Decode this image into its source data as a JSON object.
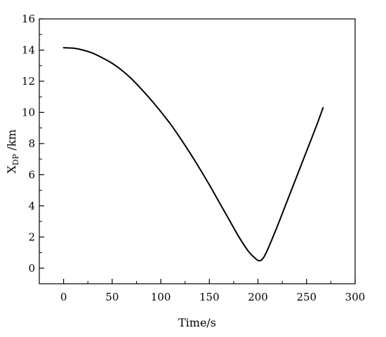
{
  "chart_data": {
    "type": "line",
    "title": "",
    "xlabel": "Time/s",
    "ylabel": {
      "main": "X",
      "sub": "DP",
      "suffix": " /km"
    },
    "xlim": [
      -25,
      300
    ],
    "ylim": [
      -1,
      16
    ],
    "x_ticks": [
      0,
      50,
      100,
      150,
      200,
      250,
      300
    ],
    "y_ticks": [
      0,
      2,
      4,
      6,
      8,
      10,
      12,
      14,
      16
    ],
    "x_tick_labels": [
      "0",
      "50",
      "100",
      "150",
      "200",
      "250",
      "300"
    ],
    "y_tick_labels": [
      "0",
      "2",
      "4",
      "6",
      "8",
      "10",
      "12",
      "14",
      "16"
    ],
    "grid": false,
    "series": [
      {
        "x": [
          0,
          10,
          20,
          30,
          40,
          50,
          60,
          70,
          80,
          90,
          100,
          110,
          120,
          130,
          140,
          150,
          160,
          170,
          180,
          190,
          196,
          200,
          203,
          206,
          210,
          220,
          230,
          240,
          250,
          260,
          267
        ],
        "y": [
          14.15,
          14.12,
          14.0,
          13.8,
          13.5,
          13.15,
          12.7,
          12.15,
          11.5,
          10.8,
          10.05,
          9.25,
          8.35,
          7.4,
          6.4,
          5.35,
          4.25,
          3.15,
          2.05,
          1.1,
          0.7,
          0.5,
          0.5,
          0.7,
          1.2,
          2.7,
          4.3,
          5.9,
          7.5,
          9.1,
          10.3
        ],
        "color": "#000000"
      }
    ]
  }
}
